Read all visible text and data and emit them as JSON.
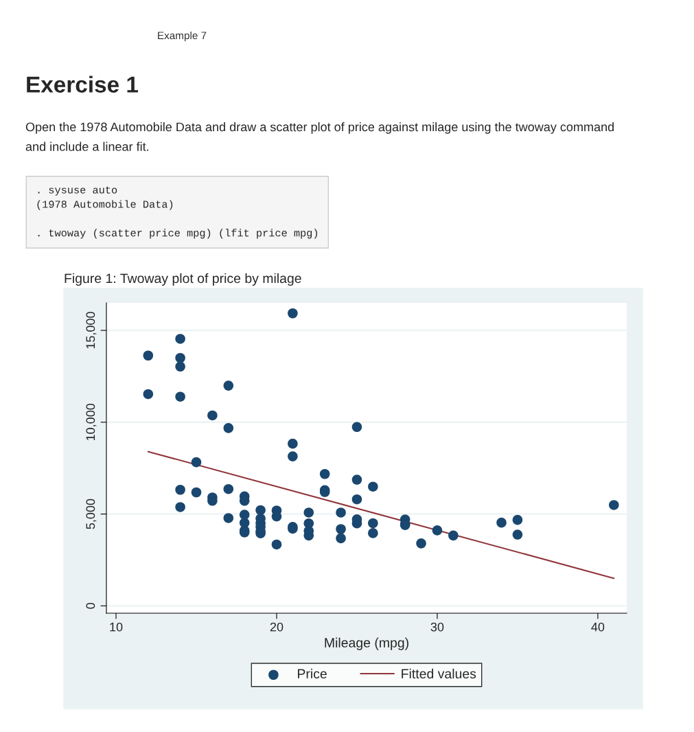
{
  "chart_data": {
    "type": "scatter",
    "title": "Figure 1: Twoway plot of price by milage",
    "xlabel": "Mileage (mpg)",
    "annotations": [
      "Example 7",
      "Exercise 1",
      "Open the 1978 Automobile Data and draw a scatter plot of price against milage using the twoway command and include a linear fit.",
      ". sysuse auto\n(1978 Automobile Data)\n\n. twoway (scatter price mpg) (lfit price mpg)"
    ],
    "xlim": [
      9.4,
      41.8
    ],
    "xticks": [
      10,
      20,
      30,
      40
    ],
    "ylim": [
      -400,
      16500
    ],
    "yticks": [
      {
        "value": 0,
        "label": "0"
      },
      {
        "value": 5000,
        "label": "5,000"
      },
      {
        "value": 10000,
        "label": "10,000"
      },
      {
        "value": 15000,
        "label": "15,000"
      }
    ],
    "grid": "y",
    "legend": "bottom",
    "marker": "circle",
    "series": [
      {
        "name": "Price",
        "color": "#1a476f",
        "x": [
          12,
          12,
          14,
          14,
          14,
          14,
          14,
          14,
          15,
          15,
          16,
          16,
          16,
          17,
          17,
          17,
          17,
          18,
          18,
          18,
          18,
          18,
          18,
          19,
          19,
          19,
          19,
          19,
          19,
          20,
          20,
          20,
          21,
          21,
          21,
          21,
          21,
          22,
          22,
          22,
          22,
          23,
          23,
          23,
          24,
          24,
          24,
          25,
          25,
          25,
          25,
          25,
          26,
          26,
          26,
          28,
          28,
          28,
          29,
          30,
          31,
          34,
          35,
          35,
          41
        ],
        "values": [
          13630,
          11530,
          14540,
          13500,
          13030,
          11390,
          6320,
          5380,
          7820,
          6180,
          10370,
          5900,
          5720,
          11990,
          9680,
          6360,
          4780,
          5960,
          5720,
          4960,
          4520,
          4100,
          4000,
          5210,
          4750,
          4500,
          4300,
          4060,
          3950,
          5190,
          4870,
          3340,
          15930,
          8830,
          8140,
          4300,
          4200,
          5080,
          4490,
          4080,
          3830,
          7180,
          6300,
          6200,
          5080,
          4180,
          3680,
          9740,
          6870,
          5800,
          4710,
          4490,
          6490,
          4500,
          3960,
          4700,
          4450,
          4400,
          3400,
          4110,
          3830,
          4530,
          4680,
          3880,
          5490
        ]
      },
      {
        "name": "Fitted values",
        "type": "line",
        "color": "#90353b",
        "marker": "none",
        "line_style": "solid",
        "x": [
          12,
          41
        ],
        "values": [
          8400,
          1500
        ]
      }
    ]
  }
}
